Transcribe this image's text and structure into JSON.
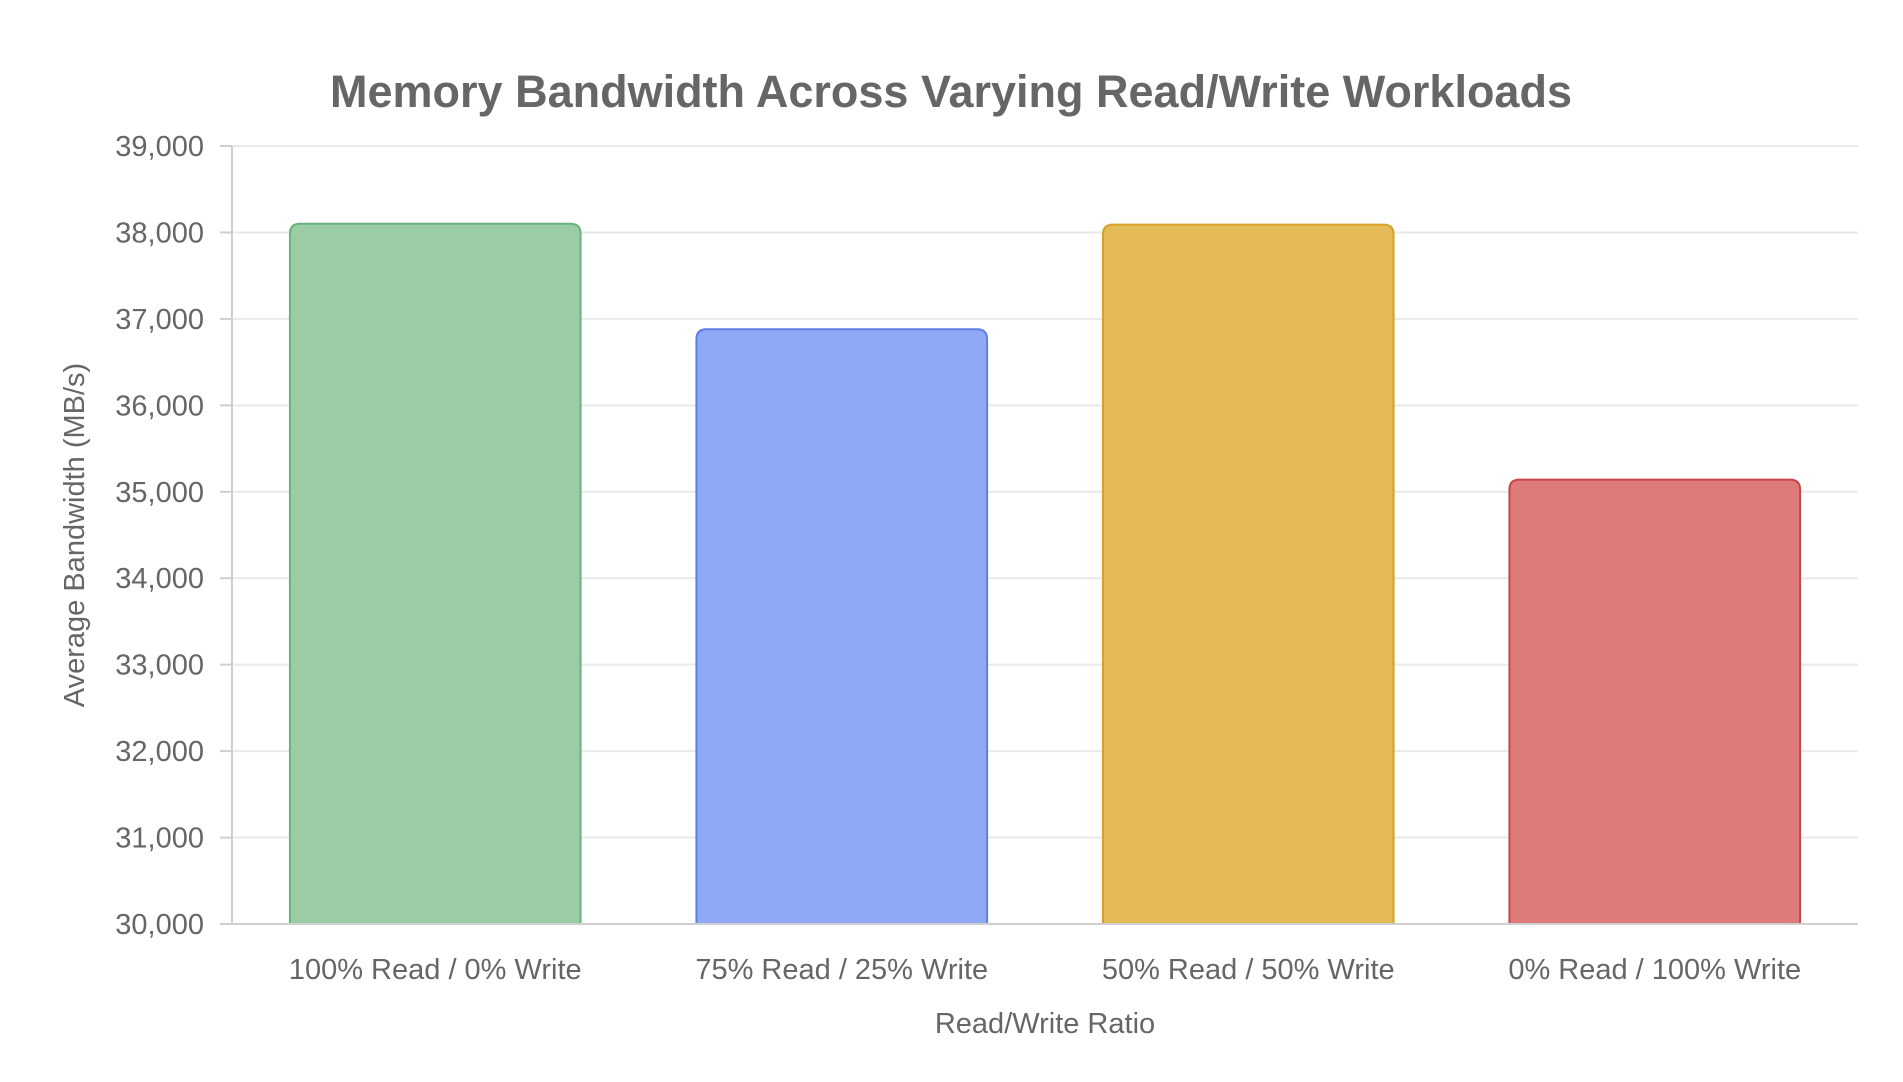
{
  "chart_data": {
    "type": "bar",
    "title": "Memory Bandwidth Across Varying Read/Write Workloads",
    "xlabel": "Read/Write Ratio",
    "ylabel": "Average Bandwidth (MB/s)",
    "categories": [
      "100% Read / 0% Write",
      "75% Read / 25% Write",
      "50% Read / 50% Write",
      "0% Read / 100% Write"
    ],
    "values": [
      38100,
      36880,
      38090,
      35140
    ],
    "ylim": [
      30000,
      39000
    ],
    "yticks": [
      "30,000",
      "31,000",
      "32,000",
      "33,000",
      "34,000",
      "35,000",
      "36,000",
      "37,000",
      "38,000",
      "39,000"
    ],
    "colors": [
      {
        "fill": "#9acda6",
        "stroke": "#6ab27c"
      },
      {
        "fill": "#8fa9f7",
        "stroke": "#5b7fe6"
      },
      {
        "fill": "#e4bb57",
        "stroke": "#d6a12a"
      },
      {
        "fill": "#dc7b79",
        "stroke": "#c9474a"
      }
    ],
    "grid": true,
    "legend": "none"
  }
}
